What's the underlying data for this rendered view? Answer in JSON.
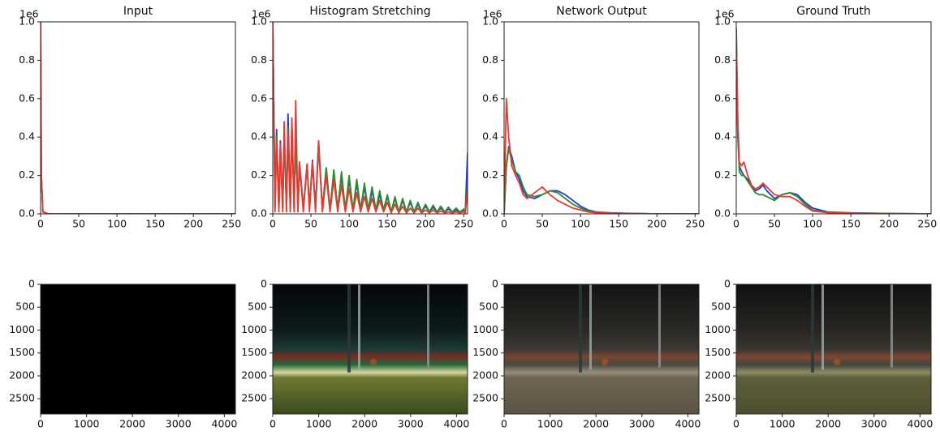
{
  "chart_data": [
    {
      "type": "line",
      "title": "Input",
      "y_offset_label": "1e6",
      "x": [
        0,
        1,
        3,
        10,
        255
      ],
      "series": [
        {
          "color": "#1f3fd0",
          "values": [
            1.0,
            0.2,
            0.01,
            0,
            0
          ]
        },
        {
          "color": "#2e8b2e",
          "values": [
            1.0,
            0.2,
            0.01,
            0,
            0
          ]
        },
        {
          "color": "#e8392f",
          "values": [
            1.0,
            0.2,
            0.01,
            0,
            0
          ]
        }
      ],
      "xlim": [
        0,
        255
      ],
      "xticks": [
        0,
        50,
        100,
        150,
        200,
        250
      ],
      "ylim": [
        0,
        1.0
      ],
      "yticks": [
        {
          "value": 0,
          "label": "0.0"
        },
        0.2,
        0.4,
        0.6,
        0.8,
        {
          "value": 1,
          "label": "1.0"
        }
      ]
    },
    {
      "type": "line",
      "title": "Histogram Stretching",
      "y_offset_label": "1e6",
      "x": [
        0,
        3,
        5,
        8,
        10,
        13,
        15,
        18,
        20,
        23,
        25,
        28,
        30,
        33,
        35,
        40,
        45,
        48,
        52,
        56,
        60,
        65,
        70,
        75,
        80,
        85,
        90,
        95,
        100,
        105,
        110,
        115,
        120,
        125,
        130,
        135,
        140,
        145,
        150,
        155,
        160,
        165,
        170,
        175,
        180,
        185,
        190,
        195,
        200,
        205,
        210,
        215,
        220,
        225,
        230,
        235,
        240,
        245,
        250,
        252,
        255
      ],
      "series": [
        {
          "color": "#1f3fd0",
          "values": [
            1.0,
            0.03,
            0.44,
            0.03,
            0.38,
            0.03,
            0.42,
            0.03,
            0.52,
            0.03,
            0.47,
            0.03,
            0.42,
            0.03,
            0.27,
            0.03,
            0.26,
            0.03,
            0.28,
            0.03,
            0.38,
            0.02,
            0.24,
            0.02,
            0.22,
            0.02,
            0.2,
            0.02,
            0.18,
            0.02,
            0.16,
            0.02,
            0.14,
            0.02,
            0.12,
            0.02,
            0.1,
            0.02,
            0.09,
            0.01,
            0.08,
            0.01,
            0.07,
            0.01,
            0.06,
            0.01,
            0.05,
            0.01,
            0.04,
            0.01,
            0.035,
            0.01,
            0.03,
            0.01,
            0.025,
            0.01,
            0.02,
            0.01,
            0.02,
            0.01,
            0.32
          ]
        },
        {
          "color": "#2e8b2e",
          "values": [
            1.0,
            0.03,
            0.4,
            0.03,
            0.35,
            0.03,
            0.4,
            0.03,
            0.45,
            0.03,
            0.44,
            0.03,
            0.4,
            0.03,
            0.25,
            0.03,
            0.25,
            0.03,
            0.26,
            0.03,
            0.35,
            0.02,
            0.24,
            0.02,
            0.23,
            0.02,
            0.22,
            0.02,
            0.2,
            0.02,
            0.18,
            0.02,
            0.16,
            0.02,
            0.14,
            0.02,
            0.12,
            0.02,
            0.1,
            0.01,
            0.09,
            0.01,
            0.08,
            0.01,
            0.07,
            0.01,
            0.06,
            0.01,
            0.05,
            0.01,
            0.045,
            0.01,
            0.04,
            0.01,
            0.035,
            0.01,
            0.03,
            0.01,
            0.025,
            0.01,
            0.15
          ]
        },
        {
          "color": "#e8392f",
          "values": [
            1.0,
            0.01,
            0.38,
            0.01,
            0.36,
            0.01,
            0.48,
            0.01,
            0.42,
            0.01,
            0.5,
            0.01,
            0.59,
            0.01,
            0.27,
            0.01,
            0.26,
            0.01,
            0.27,
            0.01,
            0.38,
            0.01,
            0.2,
            0.01,
            0.18,
            0.01,
            0.15,
            0.01,
            0.13,
            0.01,
            0.11,
            0.01,
            0.09,
            0.01,
            0.08,
            0.01,
            0.07,
            0.01,
            0.06,
            0.005,
            0.05,
            0.005,
            0.04,
            0.005,
            0.03,
            0.005,
            0.03,
            0.005,
            0.02,
            0.005,
            0.02,
            0.005,
            0.015,
            0.005,
            0.01,
            0.005,
            0.01,
            0.005,
            0.01,
            0.005,
            0.12
          ]
        }
      ],
      "xlim": [
        0,
        255
      ],
      "xticks": [
        0,
        50,
        100,
        150,
        200,
        250
      ],
      "ylim": [
        0,
        1.0
      ],
      "yticks": [
        {
          "value": 0,
          "label": "0.0"
        },
        0.2,
        0.4,
        0.6,
        0.8,
        {
          "value": 1,
          "label": "1.0"
        }
      ]
    },
    {
      "type": "line",
      "title": "Network Output",
      "y_offset_label": "1e6",
      "x": [
        0,
        3,
        6,
        10,
        15,
        20,
        25,
        30,
        40,
        50,
        60,
        70,
        80,
        90,
        100,
        110,
        120,
        140,
        160,
        200,
        255
      ],
      "series": [
        {
          "color": "#1f3fd0",
          "values": [
            0,
            0.25,
            0.35,
            0.3,
            0.22,
            0.18,
            0.12,
            0.09,
            0.08,
            0.1,
            0.12,
            0.12,
            0.1,
            0.07,
            0.04,
            0.02,
            0.01,
            0.005,
            0.003,
            0,
            0
          ]
        },
        {
          "color": "#2e8b2e",
          "values": [
            0,
            0.25,
            0.34,
            0.28,
            0.22,
            0.2,
            0.14,
            0.1,
            0.09,
            0.1,
            0.12,
            0.11,
            0.08,
            0.05,
            0.03,
            0.015,
            0.008,
            0.004,
            0.002,
            0,
            0
          ]
        },
        {
          "color": "#e8392f",
          "values": [
            0,
            0.6,
            0.4,
            0.25,
            0.2,
            0.16,
            0.1,
            0.08,
            0.11,
            0.14,
            0.1,
            0.07,
            0.05,
            0.03,
            0.02,
            0.01,
            0.006,
            0.003,
            0.002,
            0,
            0
          ]
        }
      ],
      "xlim": [
        0,
        255
      ],
      "xticks": [
        0,
        50,
        100,
        150,
        200,
        250
      ],
      "ylim": [
        0,
        1.0
      ],
      "yticks": [
        {
          "value": 0,
          "label": "0.0"
        },
        0.2,
        0.4,
        0.6,
        0.8,
        {
          "value": 1,
          "label": "1.0"
        }
      ]
    },
    {
      "type": "line",
      "title": "Ground Truth",
      "y_offset_label": "1e6",
      "x": [
        0,
        2,
        4,
        7,
        10,
        15,
        20,
        25,
        30,
        35,
        40,
        50,
        60,
        70,
        80,
        90,
        100,
        120,
        150,
        200,
        255
      ],
      "series": [
        {
          "color": "#1f3fd0",
          "values": [
            0.95,
            0.4,
            0.25,
            0.22,
            0.2,
            0.18,
            0.14,
            0.12,
            0.13,
            0.15,
            0.12,
            0.08,
            0.1,
            0.11,
            0.1,
            0.06,
            0.03,
            0.01,
            0.005,
            0.002,
            0
          ]
        },
        {
          "color": "#2e8b2e",
          "values": [
            0.97,
            0.45,
            0.22,
            0.2,
            0.2,
            0.17,
            0.14,
            0.11,
            0.1,
            0.1,
            0.09,
            0.07,
            0.1,
            0.11,
            0.09,
            0.05,
            0.02,
            0.008,
            0.004,
            0.002,
            0
          ]
        },
        {
          "color": "#e8392f",
          "values": [
            0.9,
            0.5,
            0.27,
            0.25,
            0.27,
            0.2,
            0.15,
            0.13,
            0.14,
            0.16,
            0.14,
            0.1,
            0.09,
            0.09,
            0.07,
            0.04,
            0.015,
            0.006,
            0.003,
            0.001,
            0
          ]
        }
      ],
      "xlim": [
        0,
        255
      ],
      "xticks": [
        0,
        50,
        100,
        150,
        200,
        250
      ],
      "ylim": [
        0,
        1.0
      ],
      "yticks": [
        {
          "value": 0,
          "label": "0.0"
        },
        0.2,
        0.4,
        0.6,
        0.8,
        {
          "value": 1,
          "label": "1.0"
        }
      ]
    },
    {
      "type": "image",
      "xlim": [
        0,
        4240
      ],
      "ylim": [
        2832,
        0
      ],
      "xticks": [
        0,
        1000,
        2000,
        3000,
        4000
      ],
      "yticks": [
        0,
        500,
        1000,
        1500,
        2000,
        2500
      ]
    },
    {
      "type": "image",
      "xlim": [
        0,
        4240
      ],
      "ylim": [
        2832,
        0
      ],
      "xticks": [
        0,
        1000,
        2000,
        3000,
        4000
      ],
      "yticks": [
        0,
        500,
        1000,
        1500,
        2000,
        2500
      ]
    },
    {
      "type": "image",
      "xlim": [
        0,
        4240
      ],
      "ylim": [
        2832,
        0
      ],
      "xticks": [
        0,
        1000,
        2000,
        3000,
        4000
      ],
      "yticks": [
        0,
        500,
        1000,
        1500,
        2000,
        2500
      ]
    },
    {
      "type": "image",
      "xlim": [
        0,
        4240
      ],
      "ylim": [
        2832,
        0
      ],
      "xticks": [
        0,
        1000,
        2000,
        3000,
        4000
      ],
      "yticks": [
        0,
        500,
        1000,
        1500,
        2000,
        2500
      ]
    }
  ]
}
